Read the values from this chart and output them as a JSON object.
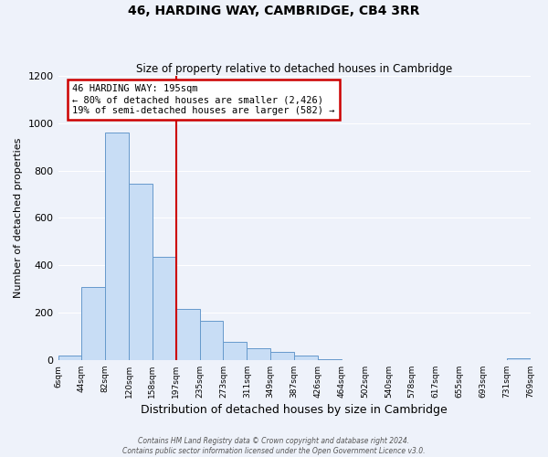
{
  "title": "46, HARDING WAY, CAMBRIDGE, CB4 3RR",
  "subtitle": "Size of property relative to detached houses in Cambridge",
  "xlabel": "Distribution of detached houses by size in Cambridge",
  "ylabel": "Number of detached properties",
  "bar_color": "#c8ddf5",
  "bar_edge_color": "#6699cc",
  "background_color": "#eef2fa",
  "tick_labels": [
    "6sqm",
    "44sqm",
    "82sqm",
    "120sqm",
    "158sqm",
    "197sqm",
    "235sqm",
    "273sqm",
    "311sqm",
    "349sqm",
    "387sqm",
    "426sqm",
    "464sqm",
    "502sqm",
    "540sqm",
    "578sqm",
    "617sqm",
    "655sqm",
    "693sqm",
    "731sqm",
    "769sqm"
  ],
  "bar_heights": [
    20,
    310,
    960,
    745,
    435,
    215,
    165,
    75,
    48,
    33,
    18,
    5,
    0,
    0,
    0,
    0,
    0,
    0,
    0,
    8,
    0
  ],
  "vline_label_idx": 5,
  "vline_color": "#cc0000",
  "annotation_title": "46 HARDING WAY: 195sqm",
  "annotation_line1": "← 80% of detached houses are smaller (2,426)",
  "annotation_line2": "19% of semi-detached houses are larger (582) →",
  "annotation_box_color": "#ffffff",
  "annotation_box_edge_color": "#cc0000",
  "ylim": [
    0,
    1200
  ],
  "yticks": [
    0,
    200,
    400,
    600,
    800,
    1000,
    1200
  ],
  "grid_color": "#ffffff",
  "footer_line1": "Contains HM Land Registry data © Crown copyright and database right 2024.",
  "footer_line2": "Contains public sector information licensed under the Open Government Licence v3.0."
}
